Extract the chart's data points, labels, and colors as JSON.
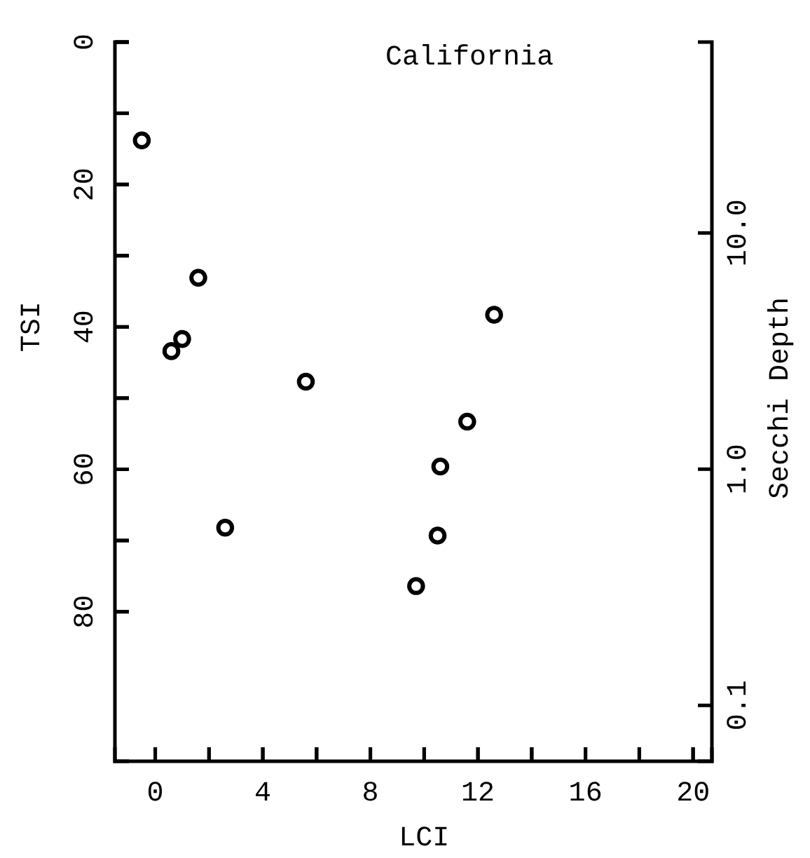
{
  "chart_data": {
    "type": "scatter",
    "title": "California",
    "xlabel": "LCI",
    "ylabel": "TSI",
    "y2label": "Secchi Depth",
    "x": [
      -0.5,
      1.6,
      0.6,
      1.0,
      5.6,
      2.6,
      9.7,
      12.6,
      11.6,
      10.6,
      10.5
    ],
    "series": [
      {
        "color": "#000000",
        "values": [
          13.8,
          33.1,
          43.4,
          41.7,
          47.7,
          68.2,
          76.4,
          38.3,
          53.3,
          59.6,
          69.3
        ]
      }
    ],
    "marker": "circle",
    "grid": false,
    "xlim": [
      -1.5,
      20.7
    ],
    "xticks": [
      0,
      {
        "value": 2,
        "label": null
      },
      4,
      {
        "value": 6,
        "label": null
      },
      8,
      {
        "value": 10,
        "label": null
      },
      12,
      {
        "value": 14,
        "label": null
      },
      16,
      {
        "value": 18,
        "label": null
      },
      20
    ],
    "ylim": [
      101,
      0
    ],
    "yticks": [
      0,
      {
        "value": 10,
        "label": null
      },
      20,
      {
        "value": 30,
        "label": null
      },
      40,
      {
        "value": 50,
        "label": null
      },
      60,
      {
        "value": 70,
        "label": null
      },
      80
    ],
    "log": "y2",
    "y2lim": [
      0.058,
      64.3
    ],
    "y2ticks": [
      {
        "value": 0.1,
        "label": "0.1"
      },
      {
        "value": 1,
        "label": "1.0"
      },
      {
        "value": 10,
        "label": "10.0"
      }
    ]
  }
}
